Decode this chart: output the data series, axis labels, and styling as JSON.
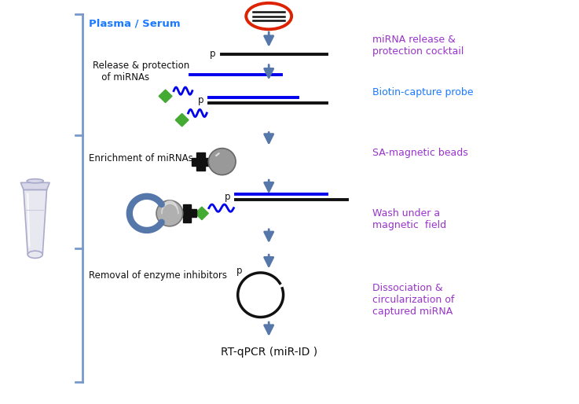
{
  "fig_width": 7.37,
  "fig_height": 5.14,
  "bg_color": "#ffffff",
  "cyan_color": "#1a7aff",
  "blue_color": "#0000ee",
  "purple_color": "#9933cc",
  "arrow_color": "#5577aa",
  "green_color": "#44aa33",
  "black_color": "#111111",
  "gray_color": "#999999",
  "bracket_color": "#7799cc",
  "red_color": "#dd2200",
  "darkblue_color": "#334477",
  "labels": {
    "plasma": "Plasma / Serum",
    "release": "Release & protection\n   of miRNAs",
    "enrichment": "Enrichment of miRNAs",
    "removal": "Removal of enzyme inhibitors",
    "miRNA_release": "miRNA release &\nprotection cocktail",
    "biotin": "Biotin-capture probe",
    "sa_beads": "SA-magnetic beads",
    "wash": "Wash under a\nmagnetic  field",
    "dissociation": "Dissociation &\ncircularization of\ncaptured miRNA",
    "rtpcr": "RT-qPCR (miR-ID )"
  }
}
